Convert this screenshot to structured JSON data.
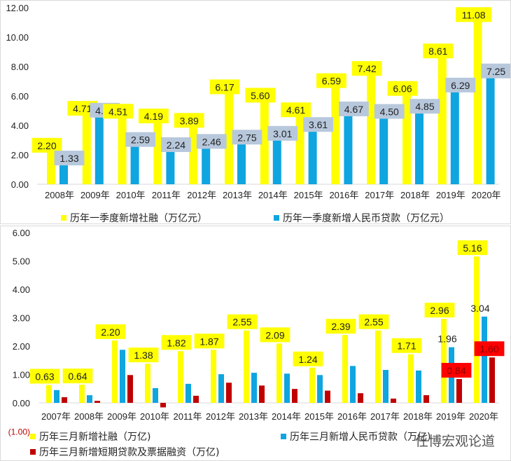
{
  "chart_data": [
    {
      "type": "bar",
      "categories": [
        "2008年",
        "2009年",
        "2010年",
        "2011年",
        "2012年",
        "2013年",
        "2014年",
        "2015年",
        "2016年",
        "2017年",
        "2018年",
        "2019年",
        "2020年"
      ],
      "series": [
        {
          "name": "历年一季度新增社融（万亿元）",
          "color": "#ffff00",
          "values": [
            2.2,
            4.71,
            4.51,
            4.19,
            3.89,
            6.17,
            5.6,
            4.61,
            6.59,
            7.42,
            6.06,
            8.61,
            11.08
          ]
        },
        {
          "name": "历年一季度新增人民币贷款（万亿元）",
          "color": "#0fa5e0",
          "values": [
            1.33,
            4.58,
            2.59,
            2.24,
            2.46,
            2.75,
            3.01,
            3.61,
            4.67,
            4.5,
            4.85,
            6.29,
            7.25
          ]
        }
      ],
      "ylim": [
        0,
        12
      ],
      "yticks": [
        "0.00",
        "2.00",
        "4.00",
        "6.00",
        "8.00",
        "10.00",
        "12.00"
      ],
      "grid": false,
      "legend": "bottom"
    },
    {
      "type": "bar",
      "categories": [
        "2007年",
        "2008年",
        "2009年",
        "2010年",
        "2011年",
        "2012年",
        "2013年",
        "2014年",
        "2015年",
        "2016年",
        "2017年",
        "2018年",
        "2019年",
        "2020年"
      ],
      "series": [
        {
          "name": "历年三月新增社融（万亿)",
          "color": "#ffff00",
          "values": [
            0.63,
            0.64,
            2.2,
            1.38,
            1.82,
            1.87,
            2.55,
            2.09,
            1.24,
            2.39,
            2.55,
            1.71,
            2.96,
            5.16
          ],
          "labels": true
        },
        {
          "name": "历年三月新增人民币贷款（万亿)",
          "color": "#0fa5e0",
          "values": [
            0.45,
            0.27,
            1.87,
            0.52,
            0.67,
            1.01,
            1.06,
            1.03,
            0.98,
            1.3,
            1.16,
            1.14,
            1.96,
            3.04
          ],
          "labeled_years": [
            "2019年",
            "2020年"
          ]
        },
        {
          "name": "历年三月新增短期贷款及票据融资（万亿)",
          "color": "#c00000",
          "values": [
            0.2,
            0.07,
            0.98,
            -0.16,
            0.25,
            0.71,
            0.61,
            0.49,
            0.43,
            0.34,
            0.15,
            0.27,
            0.84,
            1.6
          ],
          "labeled_years": [
            "2019年",
            "2020年"
          ]
        }
      ],
      "ylim": [
        -1,
        6
      ],
      "yticks": [
        "(1.00)",
        "0.00",
        "1.00",
        "2.00",
        "3.00",
        "4.00",
        "5.00",
        "6.00"
      ],
      "grid": false,
      "legend": "bottom"
    }
  ],
  "watermark": "任博宏观论道"
}
